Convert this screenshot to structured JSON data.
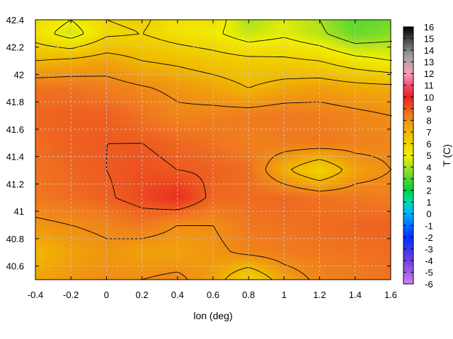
{
  "chart_data": {
    "type": "heatmap",
    "title": "",
    "xlabel": "lon (deg)",
    "ylabel": "",
    "colorbar_label": "T (C)",
    "x_ticks": [
      "-0.4",
      "-0.2",
      "0",
      "0.2",
      "0.4",
      "0.6",
      "0.8",
      "1",
      "1.2",
      "1.4",
      "1.6"
    ],
    "y_ticks": [
      "40.6",
      "40.8",
      "41",
      "41.2",
      "41.4",
      "41.6",
      "41.8",
      "42",
      "42.2",
      "42.4"
    ],
    "colorbar_ticks": [
      "-6",
      "-5",
      "-4",
      "-3",
      "-2",
      "-1",
      "0",
      "1",
      "2",
      "3",
      "4",
      "5",
      "6",
      "7",
      "8",
      "9",
      "10",
      "11",
      "12",
      "13",
      "14",
      "15",
      "16"
    ],
    "xlim": [
      -0.4,
      1.6
    ],
    "ylim": [
      40.5,
      42.4
    ],
    "zlim": [
      -6,
      16
    ],
    "grid": true,
    "colormap": [
      {
        "v": -6,
        "color": "#d080f0"
      },
      {
        "v": -4,
        "color": "#7040e0"
      },
      {
        "v": -2,
        "color": "#0030ff"
      },
      {
        "v": 0,
        "color": "#00b0ff"
      },
      {
        "v": 1,
        "color": "#00e0b0"
      },
      {
        "v": 2,
        "color": "#00d040"
      },
      {
        "v": 4,
        "color": "#a8e020"
      },
      {
        "v": 5,
        "color": "#f0f000"
      },
      {
        "v": 7,
        "color": "#f0b800"
      },
      {
        "v": 8.5,
        "color": "#f07820"
      },
      {
        "v": 10,
        "color": "#e82020"
      },
      {
        "v": 11,
        "color": "#f05070"
      },
      {
        "v": 12,
        "color": "#f8a0b8"
      },
      {
        "v": 13.5,
        "color": "#a0a0a0"
      },
      {
        "v": 16,
        "color": "#000000"
      }
    ],
    "contour_levels": [
      4,
      5,
      6,
      7,
      8,
      9,
      10
    ],
    "temperature_field": {
      "x": [
        -0.4,
        -0.2,
        0,
        0.2,
        0.4,
        0.6,
        0.8,
        1.0,
        1.2,
        1.4,
        1.6
      ],
      "y": [
        40.5,
        40.7,
        40.9,
        41.1,
        41.3,
        41.5,
        41.7,
        41.9,
        42.1,
        42.3,
        42.4
      ],
      "z": [
        [
          7.5,
          7.8,
          8.0,
          8.0,
          8.2,
          7.5,
          6.0,
          7.5,
          8.2,
          8.4,
          8.6
        ],
        [
          7.0,
          7.5,
          7.8,
          7.5,
          7.5,
          7.8,
          8.2,
          8.4,
          8.5,
          8.6,
          8.7
        ],
        [
          7.8,
          8.0,
          8.2,
          8.5,
          8.0,
          8.0,
          8.5,
          8.6,
          8.7,
          8.8,
          8.9
        ],
        [
          8.5,
          8.7,
          8.9,
          9.3,
          9.8,
          8.8,
          8.7,
          8.8,
          8.6,
          8.5,
          8.4
        ],
        [
          8.6,
          8.8,
          9.0,
          9.2,
          9.0,
          8.9,
          8.7,
          7.2,
          6.0,
          7.5,
          8.0
        ],
        [
          8.7,
          8.9,
          9.0,
          9.0,
          8.8,
          8.6,
          8.3,
          8.4,
          8.5,
          8.3,
          8.2
        ],
        [
          8.8,
          8.9,
          8.9,
          8.6,
          8.2,
          8.3,
          8.4,
          8.5,
          8.4,
          8.2,
          8.0
        ],
        [
          8.6,
          8.6,
          8.4,
          8.1,
          7.8,
          7.5,
          7.0,
          7.4,
          7.6,
          7.4,
          7.3
        ],
        [
          7.0,
          7.2,
          7.5,
          7.0,
          6.8,
          6.5,
          6.3,
          6.2,
          6.0,
          5.4,
          5.0
        ],
        [
          5.5,
          4.5,
          5.8,
          6.0,
          5.5,
          5.2,
          4.4,
          4.8,
          4.2,
          3.2,
          3.6
        ],
        [
          5.8,
          5.0,
          6.0,
          6.2,
          5.4,
          5.6,
          4.0,
          4.8,
          4.0,
          3.0,
          3.4
        ]
      ]
    }
  }
}
